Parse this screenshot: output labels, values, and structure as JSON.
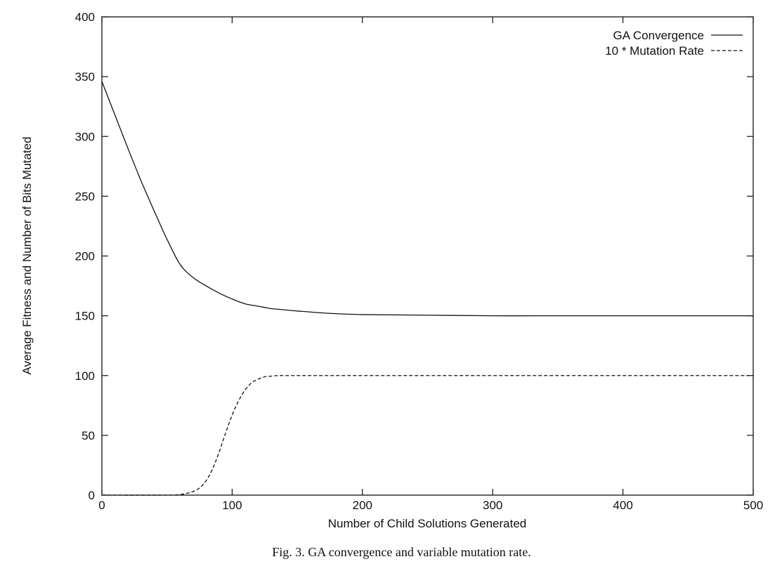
{
  "caption": "Fig. 3. GA convergence and variable mutation rate.",
  "chart_data": {
    "type": "line",
    "title": "",
    "xlabel": "Number of Child Solutions Generated",
    "ylabel": "Average Fitness  and  Number of Bits Mutated",
    "xlim": [
      0,
      500
    ],
    "ylim": [
      0,
      400
    ],
    "xticks": [
      0,
      100,
      200,
      300,
      400,
      500
    ],
    "yticks": [
      0,
      50,
      100,
      150,
      200,
      250,
      300,
      350,
      400
    ],
    "grid": false,
    "legend_position": "top-right",
    "series": [
      {
        "name": "GA Convergence",
        "style": "solid",
        "x": [
          0,
          10,
          20,
          30,
          40,
          50,
          60,
          70,
          80,
          90,
          100,
          110,
          120,
          130,
          140,
          150,
          175,
          200,
          250,
          300,
          350,
          400,
          450,
          500
        ],
        "y": [
          346,
          318,
          290,
          263,
          238,
          214,
          193,
          182,
          175,
          169,
          164,
          160,
          158,
          156,
          155,
          154,
          152,
          151,
          150.5,
          150,
          150,
          150,
          150,
          150
        ]
      },
      {
        "name": "10 * Mutation Rate",
        "style": "dashed",
        "x": [
          0,
          50,
          60,
          65,
          70,
          75,
          80,
          85,
          90,
          95,
          100,
          105,
          110,
          115,
          120,
          125,
          130,
          135,
          140,
          150,
          200,
          250,
          300,
          400,
          500
        ],
        "y": [
          0,
          0,
          0.5,
          1.5,
          3,
          6,
          12,
          22,
          36,
          52,
          67,
          79,
          88,
          94,
          97,
          99,
          99.5,
          100,
          100,
          100,
          100,
          100,
          100,
          100,
          100
        ]
      }
    ]
  }
}
